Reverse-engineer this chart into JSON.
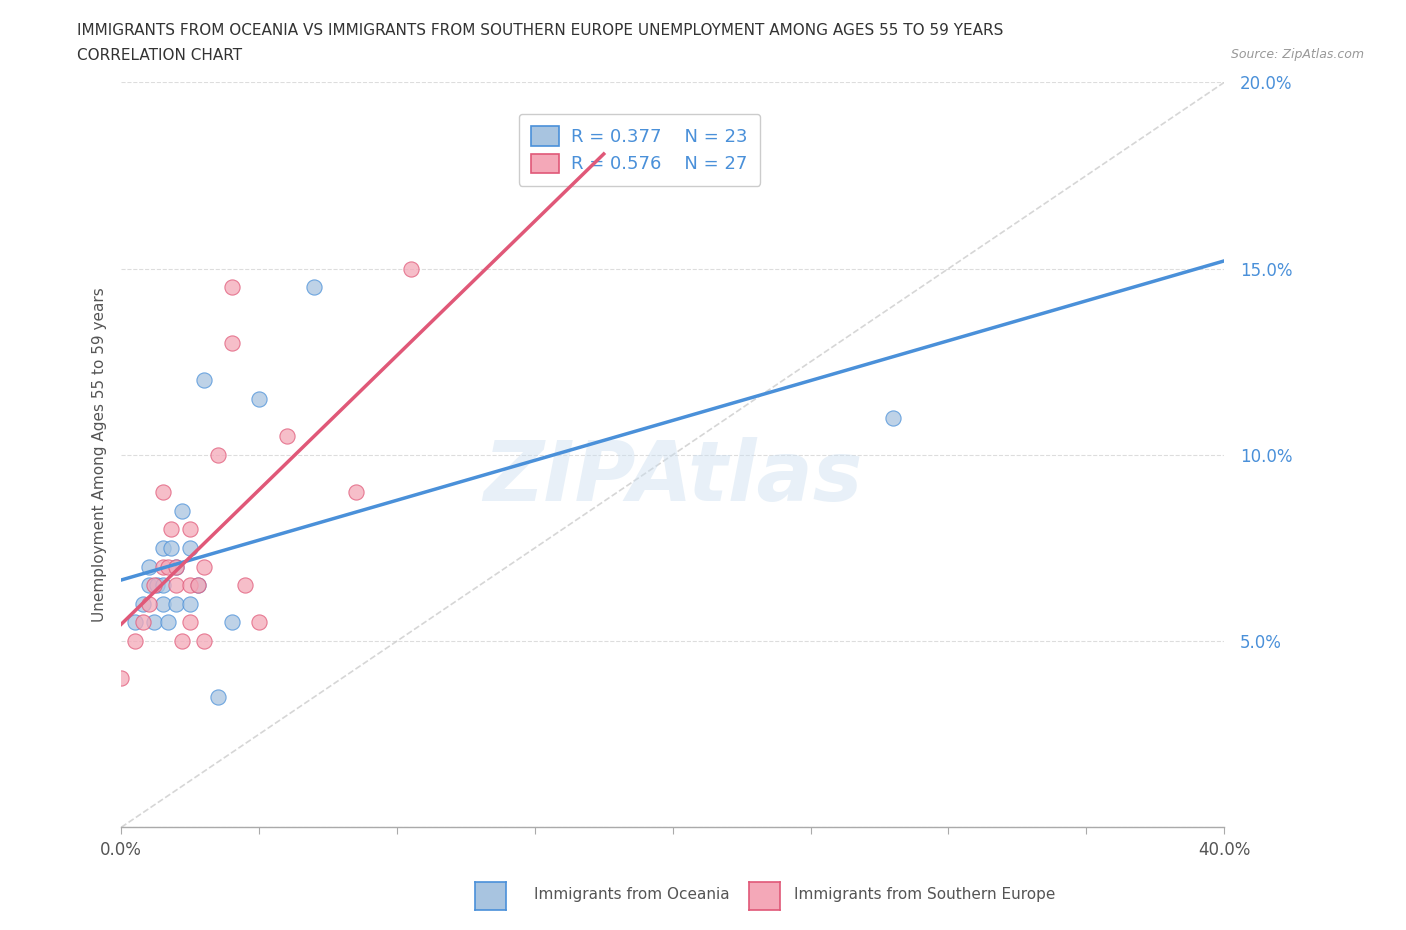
{
  "title_line1": "IMMIGRANTS FROM OCEANIA VS IMMIGRANTS FROM SOUTHERN EUROPE UNEMPLOYMENT AMONG AGES 55 TO 59 YEARS",
  "title_line2": "CORRELATION CHART",
  "source_text": "Source: ZipAtlas.com",
  "ylabel": "Unemployment Among Ages 55 to 59 years",
  "xmin": 0.0,
  "xmax": 0.4,
  "ymin": 0.0,
  "ymax": 0.2,
  "R_oceania": 0.377,
  "N_oceania": 23,
  "R_southern": 0.576,
  "N_southern": 27,
  "color_oceania": "#a8c4e0",
  "color_southern": "#f4a8b8",
  "color_trendline_oceania": "#4a90d9",
  "color_trendline_southern": "#e05878",
  "color_diagonal": "#cccccc",
  "scatter_oceania_x": [
    0.005,
    0.008,
    0.01,
    0.01,
    0.012,
    0.013,
    0.015,
    0.015,
    0.015,
    0.017,
    0.018,
    0.02,
    0.02,
    0.022,
    0.025,
    0.025,
    0.028,
    0.03,
    0.035,
    0.04,
    0.05,
    0.07,
    0.28
  ],
  "scatter_oceania_y": [
    0.055,
    0.06,
    0.065,
    0.07,
    0.055,
    0.065,
    0.06,
    0.065,
    0.075,
    0.055,
    0.075,
    0.06,
    0.07,
    0.085,
    0.06,
    0.075,
    0.065,
    0.12,
    0.035,
    0.055,
    0.115,
    0.145,
    0.11
  ],
  "scatter_southern_x": [
    0.0,
    0.005,
    0.008,
    0.01,
    0.012,
    0.015,
    0.015,
    0.017,
    0.018,
    0.02,
    0.02,
    0.022,
    0.025,
    0.025,
    0.025,
    0.028,
    0.03,
    0.03,
    0.035,
    0.04,
    0.04,
    0.045,
    0.05,
    0.06,
    0.085,
    0.105,
    0.175
  ],
  "scatter_southern_y": [
    0.04,
    0.05,
    0.055,
    0.06,
    0.065,
    0.07,
    0.09,
    0.07,
    0.08,
    0.065,
    0.07,
    0.05,
    0.055,
    0.065,
    0.08,
    0.065,
    0.05,
    0.07,
    0.1,
    0.13,
    0.145,
    0.065,
    0.055,
    0.105,
    0.09,
    0.15,
    0.175
  ],
  "watermark_text": "ZIPAtlas",
  "legend_color": "#4a90d9",
  "trendline_oceania_x_end": 0.4,
  "trendline_southern_x_end": 0.175
}
